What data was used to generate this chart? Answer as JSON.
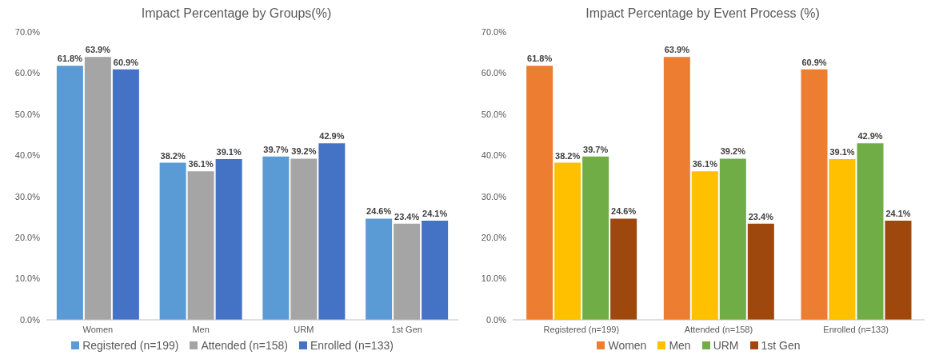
{
  "chart_data": [
    {
      "type": "bar",
      "title": "Impact Percentage by Groups(%)",
      "categories": [
        "Women",
        "Men",
        "URM",
        "1st Gen"
      ],
      "series": [
        {
          "name": "Registered (n=199)",
          "color": "#5b9bd5",
          "values": [
            61.8,
            38.2,
            39.7,
            24.6
          ],
          "value_labels": [
            "61.8%",
            "38.2%",
            "39.7%",
            "24.6%"
          ]
        },
        {
          "name": "Attended (n=158)",
          "color": "#a5a5a5",
          "values": [
            63.9,
            36.1,
            39.2,
            23.4
          ],
          "value_labels": [
            "63.9%",
            "36.1%",
            "39.2%",
            "23.4%"
          ]
        },
        {
          "name": "Enrolled (n=133)",
          "color": "#4472c4",
          "values": [
            60.9,
            39.1,
            42.9,
            24.1
          ],
          "value_labels": [
            "60.9%",
            "39.1%",
            "42.9%",
            "24.1%"
          ]
        }
      ],
      "ylim": [
        0,
        70
      ],
      "yticks": [
        {
          "value": 0,
          "label": "0.0%"
        },
        {
          "value": 10,
          "label": "10.0%"
        },
        {
          "value": 20,
          "label": "20.0%"
        },
        {
          "value": 30,
          "label": "30.0%"
        },
        {
          "value": 40,
          "label": "40.0%"
        },
        {
          "value": 50,
          "label": "50.0%"
        },
        {
          "value": 60,
          "label": "60.0%"
        },
        {
          "value": 70,
          "label": "70.0%"
        }
      ],
      "legend": "bottom",
      "grid": false
    },
    {
      "type": "bar",
      "title": "Impact Percentage by Event Process (%)",
      "categories": [
        "Registered (n=199)",
        "Attended (n=158)",
        "Enrolled (n=133)"
      ],
      "series": [
        {
          "name": "Women",
          "color": "#ed7d31",
          "values": [
            61.8,
            63.9,
            60.9
          ],
          "value_labels": [
            "61.8%",
            "63.9%",
            "60.9%"
          ]
        },
        {
          "name": "Men",
          "color": "#ffc000",
          "values": [
            38.2,
            36.1,
            39.1
          ],
          "value_labels": [
            "38.2%",
            "36.1%",
            "39.1%"
          ]
        },
        {
          "name": "URM",
          "color": "#70ad47",
          "values": [
            39.7,
            39.2,
            42.9
          ],
          "value_labels": [
            "39.7%",
            "39.2%",
            "42.9%"
          ]
        },
        {
          "name": "1st Gen",
          "color": "#9e480e",
          "values": [
            24.6,
            23.4,
            24.1
          ],
          "value_labels": [
            "24.6%",
            "23.4%",
            "24.1%"
          ]
        }
      ],
      "ylim": [
        0,
        70
      ],
      "yticks": [
        {
          "value": 0,
          "label": "0.0%"
        },
        {
          "value": 10,
          "label": "10.0%"
        },
        {
          "value": 20,
          "label": "20.0%"
        },
        {
          "value": 30,
          "label": "30.0%"
        },
        {
          "value": 40,
          "label": "40.0%"
        },
        {
          "value": 50,
          "label": "50.0%"
        },
        {
          "value": 60,
          "label": "60.0%"
        },
        {
          "value": 70,
          "label": "70.0%"
        }
      ],
      "legend": "bottom",
      "grid": false
    }
  ]
}
